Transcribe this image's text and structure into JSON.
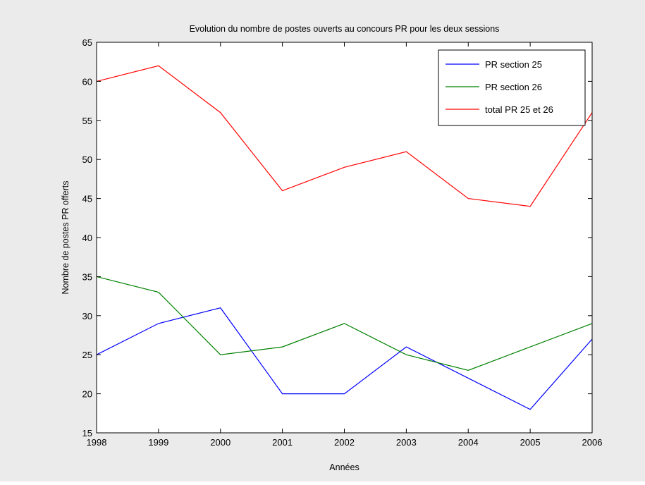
{
  "colors": {
    "figure_background": "#ebebeb",
    "axes_background": "#ffffff",
    "axes_border": "#000000"
  },
  "chart_data": {
    "type": "line",
    "title": "Evolution du nombre de postes ouverts au concours PR pour les deux sessions",
    "xlabel": "Années",
    "ylabel": "Nombre de postes PR offerts",
    "x": [
      1998,
      1999,
      2000,
      2001,
      2002,
      2003,
      2004,
      2005,
      2006
    ],
    "xlim": [
      1998,
      2006
    ],
    "ylim": [
      15,
      65
    ],
    "xticks": [
      "1998",
      "1999",
      "2000",
      "2001",
      "2002",
      "2003",
      "2004",
      "2005",
      "2006"
    ],
    "yticks": [
      "15",
      "20",
      "25",
      "30",
      "35",
      "40",
      "45",
      "50",
      "55",
      "60",
      "65"
    ],
    "grid": false,
    "legend_position": "top-right",
    "series": [
      {
        "name": "PR section 25",
        "color": "#0000ff",
        "values": [
          25,
          29,
          31,
          20,
          20,
          26,
          22,
          18,
          27
        ]
      },
      {
        "name": "PR section 26",
        "color": "#008000",
        "values": [
          35,
          33,
          25,
          26,
          29,
          25,
          23,
          26,
          29
        ]
      },
      {
        "name": "total PR 25 et 26",
        "color": "#ff0000",
        "values": [
          60,
          62,
          56,
          46,
          49,
          51,
          45,
          44,
          56
        ]
      }
    ]
  }
}
